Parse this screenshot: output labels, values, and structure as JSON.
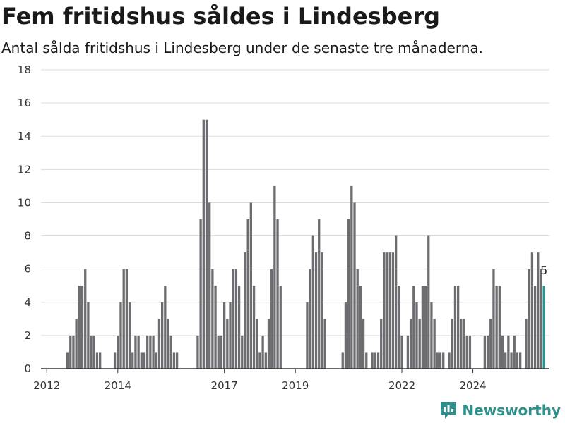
{
  "header": {
    "title": "Fem fritidshus såldes i Lindesberg",
    "subtitle": "Antal sålda fritidshus i Lindesberg under de senaste tre månaderna."
  },
  "brand": {
    "name": "Newsworthy",
    "icon": "newsworthy-logo-icon"
  },
  "colors": {
    "bar": "#6d6c70",
    "highlight": "#2a9591",
    "grid": "#dcdcdc",
    "axis": "#333333",
    "brand": "#2f8f8b"
  },
  "chart_data": {
    "type": "bar",
    "title": "Fem fritidshus såldes i Lindesberg",
    "subtitle": "Antal sålda fritidshus i Lindesberg under de senaste tre månaderna.",
    "x_unit": "month (rolling three-month total)",
    "x_start": "2011-12",
    "ylim": [
      0,
      18
    ],
    "yticks": [
      0,
      2,
      4,
      6,
      8,
      10,
      12,
      14,
      16,
      18
    ],
    "xticks": [
      "2012",
      "2014",
      "2017",
      "2019",
      "2022",
      "2024"
    ],
    "grid": true,
    "values": [
      null,
      null,
      null,
      null,
      null,
      null,
      null,
      null,
      1,
      2,
      2,
      3,
      5,
      5,
      6,
      4,
      2,
      2,
      1,
      1,
      null,
      null,
      null,
      null,
      1,
      2,
      4,
      6,
      6,
      4,
      1,
      2,
      2,
      1,
      1,
      2,
      2,
      2,
      1,
      3,
      4,
      5,
      3,
      2,
      1,
      1,
      null,
      null,
      null,
      null,
      null,
      null,
      2,
      9,
      15,
      15,
      10,
      6,
      5,
      2,
      2,
      4,
      3,
      4,
      6,
      6,
      5,
      2,
      7,
      9,
      10,
      5,
      3,
      1,
      2,
      1,
      3,
      6,
      11,
      9,
      5,
      null,
      null,
      null,
      null,
      null,
      null,
      null,
      null,
      4,
      6,
      8,
      7,
      9,
      7,
      3,
      null,
      null,
      null,
      null,
      null,
      1,
      4,
      9,
      11,
      10,
      6,
      5,
      3,
      1,
      null,
      1,
      1,
      1,
      3,
      7,
      7,
      7,
      7,
      8,
      5,
      2,
      null,
      2,
      3,
      5,
      4,
      3,
      5,
      5,
      8,
      4,
      3,
      1,
      1,
      1,
      null,
      1,
      3,
      5,
      5,
      3,
      3,
      2,
      2,
      null,
      null,
      null,
      null,
      2,
      2,
      3,
      6,
      5,
      5,
      2,
      1,
      2,
      1,
      2,
      1,
      1,
      null,
      3,
      6,
      7,
      5,
      7,
      6,
      5
    ],
    "highlight_last": true,
    "last_label": "5"
  }
}
